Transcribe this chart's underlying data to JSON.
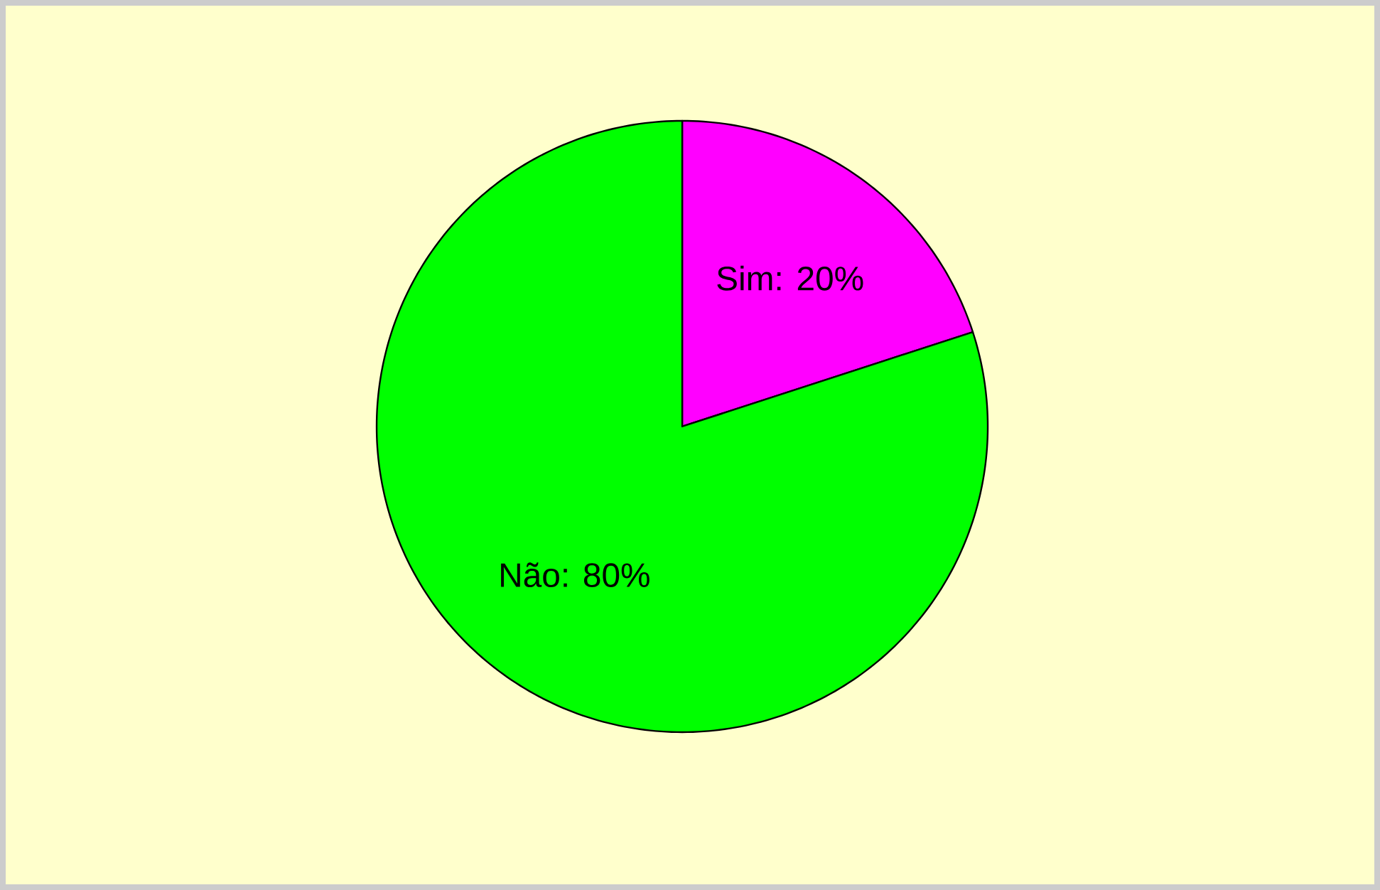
{
  "chart_data": {
    "type": "pie",
    "categories": [
      "Sim",
      "Não"
    ],
    "values": [
      20,
      80
    ],
    "colors": [
      "#ff00ff",
      "#00ff00"
    ],
    "value_labels": [
      ": 20%",
      ": 80%"
    ]
  }
}
